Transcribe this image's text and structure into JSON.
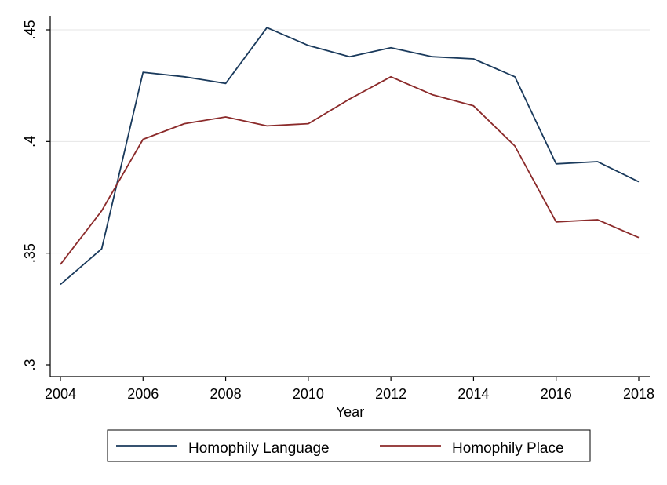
{
  "chart_data": {
    "type": "line",
    "title": "",
    "xlabel": "Year",
    "ylabel": "",
    "x": [
      2004,
      2005,
      2006,
      2007,
      2008,
      2009,
      2010,
      2011,
      2012,
      2013,
      2014,
      2015,
      2016,
      2017,
      2018
    ],
    "xticks": [
      2004,
      2006,
      2008,
      2010,
      2012,
      2014,
      2016,
      2018
    ],
    "xtick_labels": [
      "2004",
      "2006",
      "2008",
      "2010",
      "2012",
      "2014",
      "2016",
      "2018"
    ],
    "yticks": [
      0.3,
      0.35,
      0.4,
      0.45
    ],
    "ytick_labels": [
      ".3",
      ".35",
      ".4",
      ".45"
    ],
    "xlim": [
      2004,
      2018
    ],
    "ylim": [
      0.3,
      0.45
    ],
    "grid": "horizontal",
    "legend_position": "bottom",
    "series": [
      {
        "name": "Homophily Language",
        "color": "#1a3a5c",
        "values": [
          0.336,
          0.352,
          0.431,
          0.429,
          0.426,
          0.451,
          0.443,
          0.438,
          0.442,
          0.438,
          0.437,
          0.429,
          0.39,
          0.391,
          0.382
        ]
      },
      {
        "name": "Homophily Place",
        "color": "#8b2a2a",
        "values": [
          0.345,
          0.369,
          0.401,
          0.408,
          0.411,
          0.407,
          0.408,
          0.419,
          0.429,
          0.421,
          0.416,
          0.398,
          0.364,
          0.365,
          0.357
        ]
      }
    ]
  }
}
